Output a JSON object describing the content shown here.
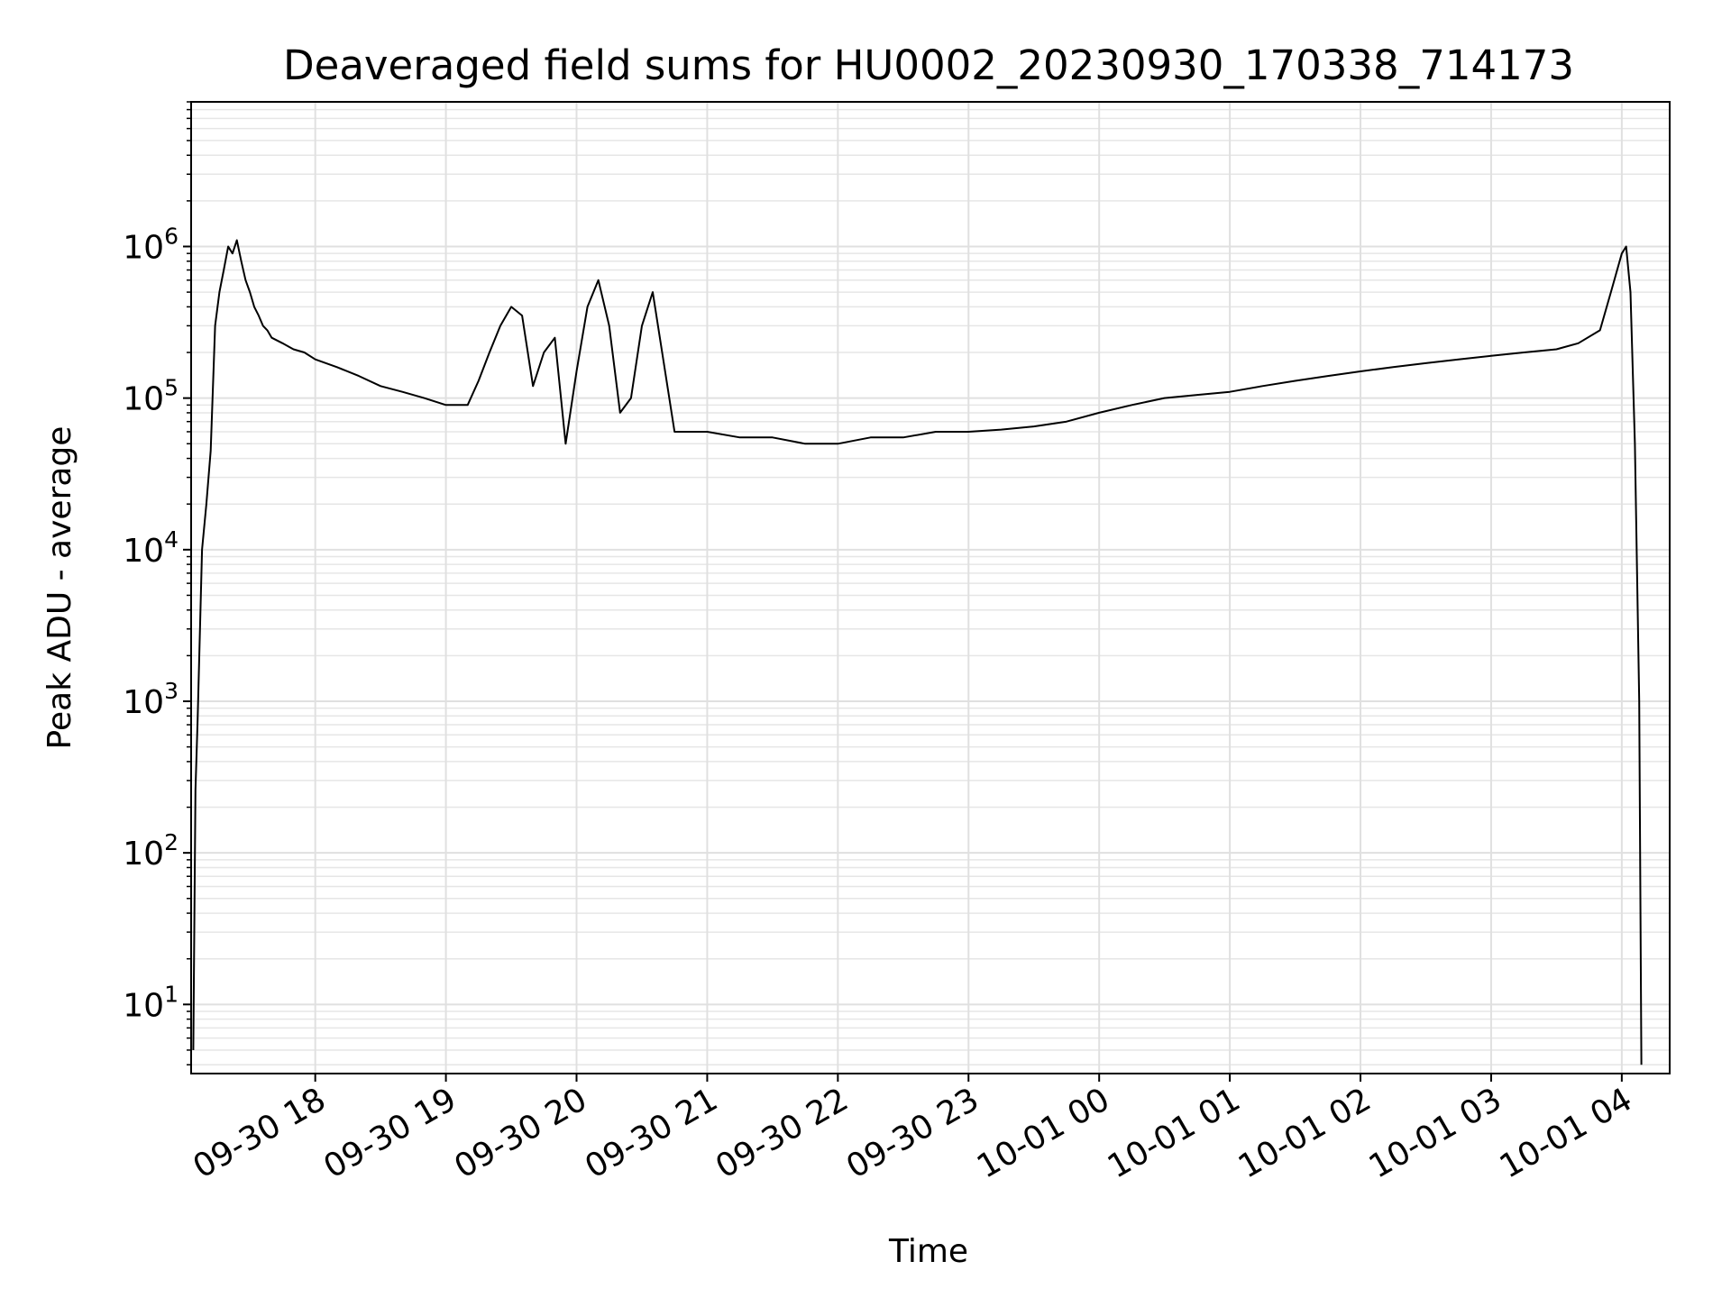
{
  "chart_data": {
    "type": "line",
    "title": "Deaveraged field sums for HU0002_20230930_170338_714173",
    "xlabel": "Time",
    "ylabel": "Peak ADU - average",
    "yscale": "log",
    "xlim": [
      "2023-09-30 17:03",
      "2023-10-01 04:22"
    ],
    "ylim": [
      3.5,
      9000000
    ],
    "grid": true,
    "line_color": "#000000",
    "x_ticks": [
      {
        "value": "2023-09-30 18:00",
        "label": "09-30 18"
      },
      {
        "value": "2023-09-30 19:00",
        "label": "09-30 19"
      },
      {
        "value": "2023-09-30 20:00",
        "label": "09-30 20"
      },
      {
        "value": "2023-09-30 21:00",
        "label": "09-30 21"
      },
      {
        "value": "2023-09-30 22:00",
        "label": "09-30 22"
      },
      {
        "value": "2023-09-30 23:00",
        "label": "09-30 23"
      },
      {
        "value": "2023-10-01 00:00",
        "label": "10-01 00"
      },
      {
        "value": "2023-10-01 01:00",
        "label": "10-01 01"
      },
      {
        "value": "2023-10-01 02:00",
        "label": "10-01 02"
      },
      {
        "value": "2023-10-01 03:00",
        "label": "10-01 03"
      },
      {
        "value": "2023-10-01 04:00",
        "label": "10-01 04"
      }
    ],
    "y_ticks": [
      {
        "value": 10,
        "base": "10",
        "exp": "1"
      },
      {
        "value": 100,
        "base": "10",
        "exp": "2"
      },
      {
        "value": 1000,
        "base": "10",
        "exp": "3"
      },
      {
        "value": 10000,
        "base": "10",
        "exp": "4"
      },
      {
        "value": 100000,
        "base": "10",
        "exp": "5"
      },
      {
        "value": 1000000,
        "base": "10",
        "exp": "6"
      }
    ],
    "x": [
      "2023-09-30 17:04",
      "2023-09-30 17:05",
      "2023-09-30 17:06",
      "2023-09-30 17:08",
      "2023-09-30 17:10",
      "2023-09-30 17:12",
      "2023-09-30 17:14",
      "2023-09-30 17:16",
      "2023-09-30 17:18",
      "2023-09-30 17:20",
      "2023-09-30 17:22",
      "2023-09-30 17:24",
      "2023-09-30 17:26",
      "2023-09-30 17:28",
      "2023-09-30 17:30",
      "2023-09-30 17:32",
      "2023-09-30 17:34",
      "2023-09-30 17:36",
      "2023-09-30 17:38",
      "2023-09-30 17:40",
      "2023-09-30 17:45",
      "2023-09-30 17:50",
      "2023-09-30 17:55",
      "2023-09-30 18:00",
      "2023-09-30 18:10",
      "2023-09-30 18:20",
      "2023-09-30 18:30",
      "2023-09-30 18:40",
      "2023-09-30 18:50",
      "2023-09-30 19:00",
      "2023-09-30 19:10",
      "2023-09-30 19:15",
      "2023-09-30 19:20",
      "2023-09-30 19:25",
      "2023-09-30 19:30",
      "2023-09-30 19:35",
      "2023-09-30 19:40",
      "2023-09-30 19:45",
      "2023-09-30 19:50",
      "2023-09-30 19:55",
      "2023-09-30 20:00",
      "2023-09-30 20:05",
      "2023-09-30 20:10",
      "2023-09-30 20:15",
      "2023-09-30 20:20",
      "2023-09-30 20:25",
      "2023-09-30 20:30",
      "2023-09-30 20:35",
      "2023-09-30 20:45",
      "2023-09-30 21:00",
      "2023-09-30 21:15",
      "2023-09-30 21:30",
      "2023-09-30 21:45",
      "2023-09-30 22:00",
      "2023-09-30 22:15",
      "2023-09-30 22:30",
      "2023-09-30 22:45",
      "2023-09-30 23:00",
      "2023-09-30 23:15",
      "2023-09-30 23:30",
      "2023-09-30 23:45",
      "2023-10-01 00:00",
      "2023-10-01 00:15",
      "2023-10-01 00:30",
      "2023-10-01 00:45",
      "2023-10-01 01:00",
      "2023-10-01 01:15",
      "2023-10-01 01:30",
      "2023-10-01 01:45",
      "2023-10-01 02:00",
      "2023-10-01 02:15",
      "2023-10-01 02:30",
      "2023-10-01 02:45",
      "2023-10-01 03:00",
      "2023-10-01 03:15",
      "2023-10-01 03:30",
      "2023-10-01 03:40",
      "2023-10-01 03:50",
      "2023-10-01 03:55",
      "2023-10-01 04:00",
      "2023-10-01 04:02",
      "2023-10-01 04:04",
      "2023-10-01 04:06",
      "2023-10-01 04:08",
      "2023-10-01 04:09"
    ],
    "y": [
      5,
      260,
      750,
      10000,
      20000,
      45000,
      300000,
      500000,
      700000,
      1000000,
      900000,
      1100000,
      800000,
      600000,
      500000,
      400000,
      350000,
      300000,
      280000,
      250000,
      230000,
      210000,
      200000,
      180000,
      160000,
      140000,
      120000,
      110000,
      100000,
      90000,
      90000,
      130000,
      200000,
      300000,
      400000,
      350000,
      120000,
      200000,
      250000,
      50000,
      150000,
      400000,
      600000,
      300000,
      80000,
      100000,
      300000,
      500000,
      60000,
      60000,
      55000,
      55000,
      50000,
      50000,
      55000,
      55000,
      60000,
      60000,
      62000,
      65000,
      70000,
      80000,
      90000,
      100000,
      105000,
      110000,
      120000,
      130000,
      140000,
      150000,
      160000,
      170000,
      180000,
      190000,
      200000,
      210000,
      230000,
      280000,
      500000,
      900000,
      1000000,
      500000,
      50000,
      1000,
      4
    ]
  }
}
